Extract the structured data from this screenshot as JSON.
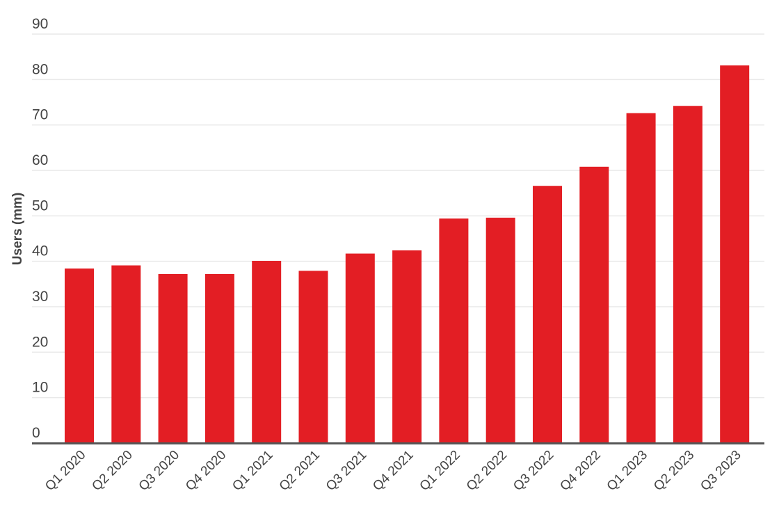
{
  "chart_data": {
    "type": "bar",
    "title": "",
    "xlabel": "",
    "ylabel": "Users (mm)",
    "ylim": [
      0,
      90
    ],
    "yticks": [
      0,
      10,
      20,
      30,
      40,
      50,
      60,
      70,
      80,
      90
    ],
    "grid": true,
    "legend": null,
    "bar_color": "#E31E24",
    "categories": [
      "Q1 2020",
      "Q2 2020",
      "Q3 2020",
      "Q4 2020",
      "Q1 2021",
      "Q2 2021",
      "Q3 2021",
      "Q4 2021",
      "Q1 2022",
      "Q2 2022",
      "Q3 2022",
      "Q4 2022",
      "Q1 2023",
      "Q2 2023",
      "Q3 2023"
    ],
    "values": [
      38.4,
      39.1,
      37.2,
      37.2,
      40.1,
      37.9,
      41.7,
      42.4,
      49.4,
      49.6,
      56.6,
      60.8,
      72.6,
      74.2,
      83.1
    ]
  }
}
